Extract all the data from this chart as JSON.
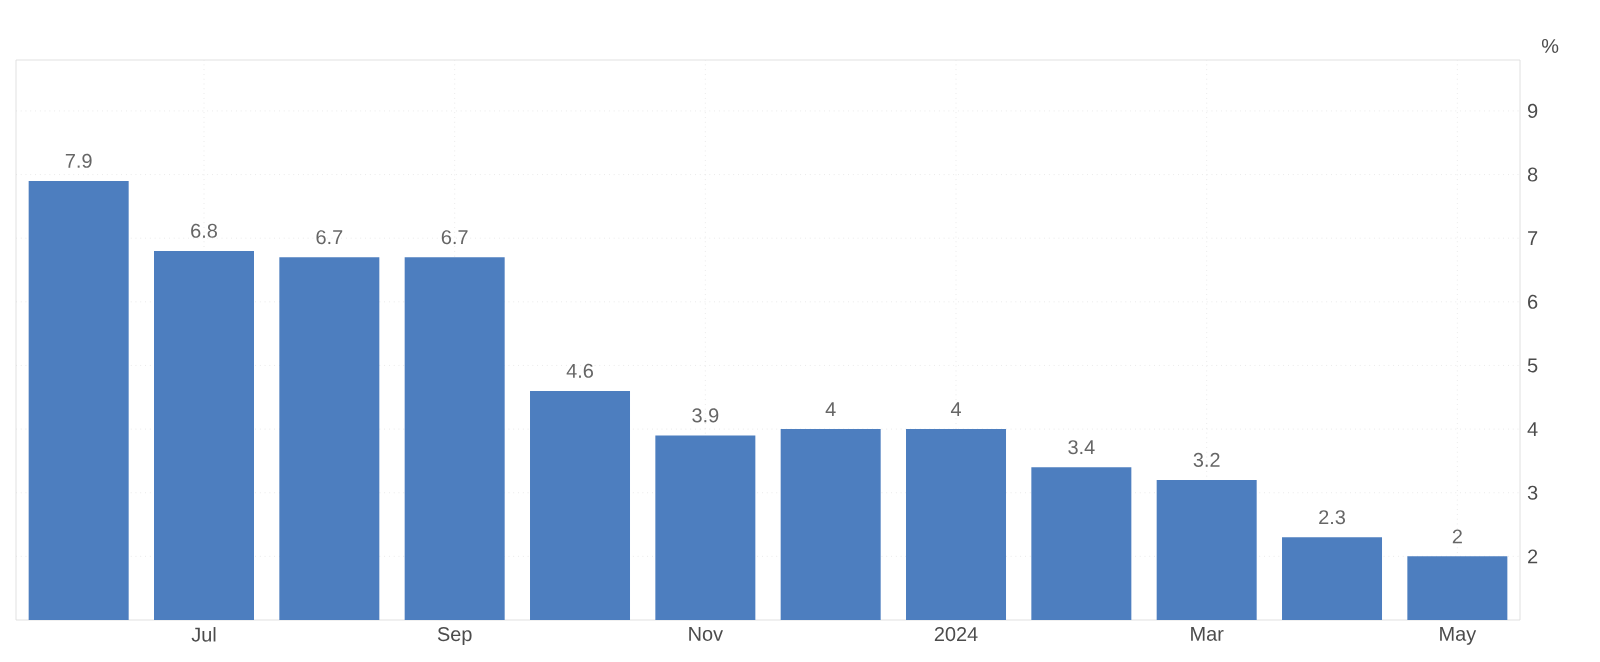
{
  "chart_data": {
    "type": "bar",
    "categories": [
      null,
      "Jul",
      null,
      "Sep",
      null,
      "Nov",
      null,
      "2024",
      null,
      "Mar",
      null,
      "May"
    ],
    "values": [
      7.9,
      6.8,
      6.7,
      6.7,
      4.6,
      3.9,
      4,
      4,
      3.4,
      3.2,
      2.3,
      2
    ],
    "color": "#4d7ebf",
    "ylabel": "%",
    "ylim": [
      1,
      9.8
    ],
    "yticks": [
      2,
      3,
      4,
      5,
      6,
      7,
      8,
      9
    ],
    "grid": true,
    "data_labels": true
  }
}
